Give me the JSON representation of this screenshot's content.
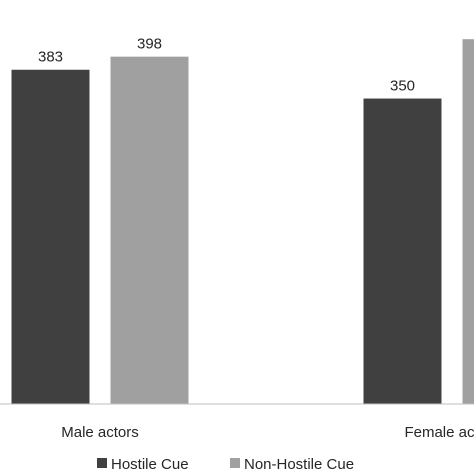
{
  "chart_data": {
    "type": "bar",
    "categories": [
      "Male actors",
      "Female actors"
    ],
    "series": [
      {
        "name": "Hostile Cue",
        "values": [
          383,
          350
        ],
        "color": "#404040"
      },
      {
        "name": "Non-Hostile Cue",
        "values": [
          398,
          418
        ],
        "color": "#a0a0a0"
      }
    ],
    "title": "",
    "xlabel": "",
    "ylabel": "",
    "ylim": [
      0,
      440
    ],
    "grid": false,
    "legend_position": "bottom",
    "axis_color": "#bfbfbf",
    "data_label_color": "#262626"
  }
}
